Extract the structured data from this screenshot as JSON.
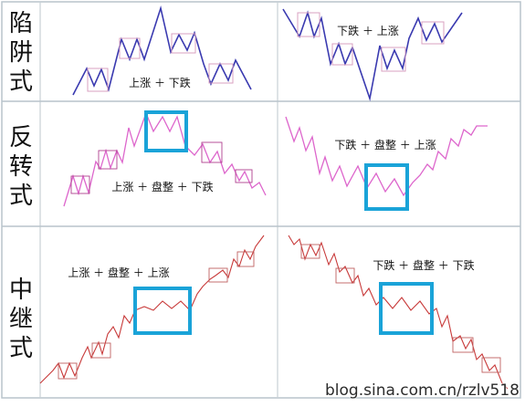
{
  "rows": [
    {
      "label_chars": [
        "陷",
        "阱",
        "式"
      ],
      "left_caption": "上涨 ＋ 下跌",
      "right_caption": "下跌 ＋ 上涨",
      "color": "#3a3ab0",
      "box_color": "#d9a0c0"
    },
    {
      "label_chars": [
        "反",
        "转",
        "式"
      ],
      "left_caption": "上涨 ＋ 盘整 ＋ 下跌",
      "right_caption": "下跌 ＋ 盘整 ＋ 上涨",
      "color": "#dd66cc",
      "box_color": "#b04090"
    },
    {
      "label_chars": [
        "中",
        "继",
        "式"
      ],
      "left_caption": "上涨 ＋ 盘整 ＋ 上涨",
      "right_caption": "下跌 ＋ 盘整 ＋ 下跌",
      "color": "#c83a3a",
      "box_color": "#c06060"
    }
  ],
  "consolidation_box_color": "#1aa3d8",
  "watermark": "blog.sina.com.cn/rzlv518"
}
